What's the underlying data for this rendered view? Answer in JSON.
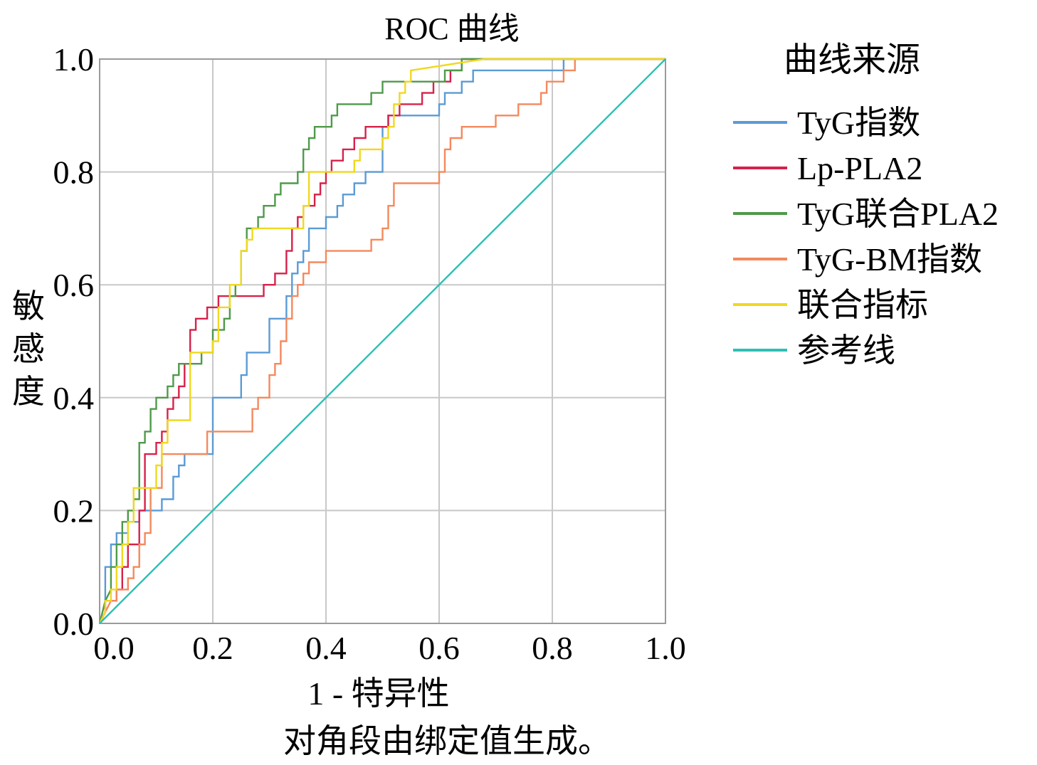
{
  "chart_data": {
    "type": "line",
    "title": "ROC 曲线",
    "xlabel": "1 - 特异性",
    "ylabel": "敏感度",
    "footnote": "对角段由绑定值生成。",
    "legend_title": "曲线来源",
    "legend_position": "right",
    "grid": true,
    "xlim": [
      0,
      1
    ],
    "ylim": [
      0,
      1
    ],
    "xticks": [
      "0.0",
      "0.2",
      "0.4",
      "0.6",
      "0.8",
      "1.0"
    ],
    "yticks": [
      "0.0",
      "0.2",
      "0.4",
      "0.6",
      "0.8",
      "1.0"
    ],
    "series": [
      {
        "name": "TyG指数",
        "color": "#5b9bd5",
        "x": [
          0,
          0.01,
          0.01,
          0.02,
          0.02,
          0.03,
          0.03,
          0.05,
          0.05,
          0.07,
          0.07,
          0.08,
          0.08,
          0.11,
          0.11,
          0.13,
          0.13,
          0.14,
          0.14,
          0.15,
          0.15,
          0.16,
          0.16,
          0.18,
          0.18,
          0.2,
          0.2,
          0.21,
          0.21,
          0.22,
          0.22,
          0.25,
          0.25,
          0.26,
          0.26,
          0.27,
          0.27,
          0.28,
          0.28,
          0.3,
          0.3,
          0.31,
          0.31,
          0.33,
          0.33,
          0.34,
          0.34,
          0.35,
          0.35,
          0.36,
          0.36,
          0.37,
          0.37,
          0.38,
          0.38,
          0.4,
          0.4,
          0.42,
          0.42,
          0.43,
          0.43,
          0.45,
          0.45,
          0.47,
          0.47,
          0.5,
          0.5,
          0.51,
          0.51,
          0.52,
          0.52,
          0.53,
          0.53,
          0.55,
          0.55,
          0.6,
          0.6,
          0.61,
          0.61,
          0.62,
          0.62,
          0.64,
          0.64,
          0.66,
          0.66,
          0.68,
          0.68,
          0.7,
          0.7,
          0.82,
          0.82,
          0.84,
          1.0
        ],
        "y": [
          0,
          0.02,
          0.1,
          0.1,
          0.14,
          0.14,
          0.16,
          0.16,
          0.18,
          0.18,
          0.2,
          0.2,
          0.2,
          0.2,
          0.22,
          0.22,
          0.26,
          0.26,
          0.28,
          0.28,
          0.3,
          0.3,
          0.3,
          0.3,
          0.3,
          0.3,
          0.4,
          0.4,
          0.4,
          0.4,
          0.4,
          0.4,
          0.44,
          0.44,
          0.48,
          0.48,
          0.48,
          0.48,
          0.48,
          0.48,
          0.54,
          0.54,
          0.54,
          0.54,
          0.58,
          0.58,
          0.62,
          0.62,
          0.64,
          0.64,
          0.66,
          0.66,
          0.7,
          0.7,
          0.7,
          0.7,
          0.72,
          0.72,
          0.74,
          0.74,
          0.76,
          0.76,
          0.78,
          0.78,
          0.8,
          0.8,
          0.88,
          0.88,
          0.9,
          0.9,
          0.9,
          0.9,
          0.9,
          0.9,
          0.9,
          0.9,
          0.92,
          0.92,
          0.94,
          0.94,
          0.94,
          0.94,
          0.96,
          0.96,
          0.98,
          0.98,
          0.98,
          0.98,
          0.98,
          0.98,
          1.0,
          1.0,
          1.0
        ]
      },
      {
        "name": "Lp-PLA2",
        "color": "#d6224a",
        "x": [
          0,
          0.01,
          0.01,
          0.03,
          0.03,
          0.04,
          0.04,
          0.05,
          0.05,
          0.07,
          0.07,
          0.08,
          0.08,
          0.1,
          0.1,
          0.11,
          0.11,
          0.12,
          0.12,
          0.13,
          0.13,
          0.14,
          0.14,
          0.15,
          0.15,
          0.16,
          0.16,
          0.17,
          0.17,
          0.19,
          0.19,
          0.21,
          0.21,
          0.22,
          0.22,
          0.23,
          0.23,
          0.29,
          0.29,
          0.31,
          0.31,
          0.33,
          0.33,
          0.34,
          0.34,
          0.35,
          0.35,
          0.36,
          0.36,
          0.37,
          0.37,
          0.38,
          0.38,
          0.39,
          0.39,
          0.4,
          0.4,
          0.41,
          0.41,
          0.42,
          0.42,
          0.43,
          0.43,
          0.45,
          0.45,
          0.47,
          0.47,
          0.49,
          0.49,
          0.51,
          0.51,
          0.52,
          0.52,
          0.53,
          0.53,
          0.55,
          0.55,
          0.57,
          0.57,
          0.59,
          0.59,
          0.62,
          0.62,
          0.64,
          0.64,
          0.65,
          0.65,
          1.0
        ],
        "y": [
          0,
          0.02,
          0.04,
          0.04,
          0.06,
          0.06,
          0.1,
          0.1,
          0.14,
          0.14,
          0.2,
          0.2,
          0.3,
          0.3,
          0.32,
          0.32,
          0.34,
          0.34,
          0.38,
          0.38,
          0.4,
          0.4,
          0.42,
          0.42,
          0.46,
          0.46,
          0.52,
          0.52,
          0.54,
          0.54,
          0.56,
          0.56,
          0.58,
          0.58,
          0.58,
          0.58,
          0.58,
          0.58,
          0.6,
          0.6,
          0.62,
          0.62,
          0.66,
          0.66,
          0.7,
          0.7,
          0.72,
          0.72,
          0.74,
          0.74,
          0.74,
          0.74,
          0.76,
          0.76,
          0.78,
          0.78,
          0.8,
          0.8,
          0.82,
          0.82,
          0.82,
          0.82,
          0.84,
          0.84,
          0.86,
          0.86,
          0.88,
          0.88,
          0.88,
          0.88,
          0.9,
          0.9,
          0.9,
          0.9,
          0.92,
          0.92,
          0.92,
          0.92,
          0.94,
          0.94,
          0.96,
          0.96,
          0.98,
          0.98,
          1.0,
          1.0,
          1.0,
          1.0
        ]
      },
      {
        "name": "TyG联合PLA2",
        "color": "#4e9a4a",
        "x": [
          0,
          0.01,
          0.01,
          0.02,
          0.02,
          0.03,
          0.03,
          0.04,
          0.04,
          0.05,
          0.05,
          0.06,
          0.06,
          0.07,
          0.07,
          0.08,
          0.08,
          0.09,
          0.09,
          0.1,
          0.1,
          0.12,
          0.12,
          0.13,
          0.13,
          0.14,
          0.14,
          0.16,
          0.16,
          0.18,
          0.18,
          0.2,
          0.2,
          0.22,
          0.22,
          0.23,
          0.23,
          0.24,
          0.24,
          0.25,
          0.25,
          0.26,
          0.26,
          0.28,
          0.28,
          0.29,
          0.29,
          0.31,
          0.31,
          0.32,
          0.32,
          0.35,
          0.35,
          0.36,
          0.36,
          0.37,
          0.37,
          0.38,
          0.38,
          0.39,
          0.39,
          0.41,
          0.41,
          0.42,
          0.42,
          0.44,
          0.44,
          0.48,
          0.48,
          0.49,
          0.49,
          0.5,
          0.5,
          0.52,
          0.52,
          0.61,
          0.61,
          0.62,
          0.62,
          0.64,
          0.64,
          0.66,
          1.0
        ],
        "y": [
          0,
          0.04,
          0.04,
          0.06,
          0.1,
          0.1,
          0.14,
          0.14,
          0.18,
          0.18,
          0.2,
          0.2,
          0.22,
          0.22,
          0.32,
          0.32,
          0.34,
          0.34,
          0.38,
          0.38,
          0.4,
          0.4,
          0.42,
          0.42,
          0.44,
          0.44,
          0.46,
          0.46,
          0.46,
          0.46,
          0.48,
          0.48,
          0.52,
          0.52,
          0.54,
          0.54,
          0.58,
          0.58,
          0.6,
          0.6,
          0.66,
          0.66,
          0.7,
          0.7,
          0.72,
          0.72,
          0.74,
          0.74,
          0.76,
          0.76,
          0.78,
          0.78,
          0.8,
          0.8,
          0.84,
          0.84,
          0.86,
          0.86,
          0.88,
          0.88,
          0.88,
          0.88,
          0.9,
          0.9,
          0.92,
          0.92,
          0.92,
          0.92,
          0.94,
          0.94,
          0.94,
          0.94,
          0.96,
          0.96,
          0.96,
          0.96,
          0.98,
          0.98,
          0.98,
          0.98,
          1.0,
          1.0,
          1.0
        ]
      },
      {
        "name": "TyG-BM指数",
        "color": "#f4895d",
        "x": [
          0,
          0.01,
          0.01,
          0.02,
          0.02,
          0.03,
          0.03,
          0.05,
          0.05,
          0.06,
          0.06,
          0.07,
          0.07,
          0.08,
          0.08,
          0.09,
          0.09,
          0.11,
          0.11,
          0.13,
          0.13,
          0.19,
          0.19,
          0.23,
          0.23,
          0.27,
          0.27,
          0.28,
          0.28,
          0.3,
          0.3,
          0.31,
          0.31,
          0.32,
          0.32,
          0.33,
          0.33,
          0.34,
          0.34,
          0.35,
          0.35,
          0.36,
          0.36,
          0.37,
          0.37,
          0.38,
          0.38,
          0.4,
          0.4,
          0.42,
          0.42,
          0.48,
          0.48,
          0.5,
          0.5,
          0.51,
          0.51,
          0.52,
          0.52,
          0.53,
          0.53,
          0.6,
          0.6,
          0.61,
          0.61,
          0.62,
          0.62,
          0.64,
          0.64,
          0.67,
          0.67,
          0.7,
          0.7,
          0.74,
          0.74,
          0.78,
          0.78,
          0.79,
          0.79,
          0.8,
          0.8,
          0.82,
          0.82,
          0.84,
          0.84,
          1.0
        ],
        "y": [
          0,
          0.02,
          0.02,
          0.04,
          0.04,
          0.04,
          0.06,
          0.06,
          0.08,
          0.08,
          0.1,
          0.1,
          0.14,
          0.14,
          0.16,
          0.16,
          0.24,
          0.24,
          0.3,
          0.3,
          0.3,
          0.3,
          0.34,
          0.34,
          0.34,
          0.34,
          0.38,
          0.38,
          0.4,
          0.4,
          0.44,
          0.44,
          0.46,
          0.46,
          0.5,
          0.5,
          0.54,
          0.54,
          0.58,
          0.58,
          0.6,
          0.6,
          0.62,
          0.62,
          0.64,
          0.64,
          0.64,
          0.64,
          0.66,
          0.66,
          0.66,
          0.66,
          0.68,
          0.68,
          0.7,
          0.7,
          0.74,
          0.74,
          0.78,
          0.78,
          0.78,
          0.78,
          0.8,
          0.8,
          0.84,
          0.84,
          0.86,
          0.86,
          0.88,
          0.88,
          0.88,
          0.88,
          0.9,
          0.9,
          0.92,
          0.92,
          0.94,
          0.94,
          0.96,
          0.96,
          0.96,
          0.96,
          0.98,
          0.98,
          1.0,
          1.0
        ]
      },
      {
        "name": "联合指标",
        "color": "#f0d820",
        "x": [
          0,
          0.01,
          0.01,
          0.02,
          0.02,
          0.03,
          0.03,
          0.04,
          0.04,
          0.05,
          0.05,
          0.06,
          0.06,
          0.09,
          0.09,
          0.1,
          0.1,
          0.11,
          0.11,
          0.12,
          0.12,
          0.16,
          0.16,
          0.17,
          0.17,
          0.2,
          0.2,
          0.21,
          0.21,
          0.23,
          0.23,
          0.24,
          0.24,
          0.25,
          0.25,
          0.26,
          0.26,
          0.27,
          0.27,
          0.31,
          0.31,
          0.36,
          0.36,
          0.37,
          0.37,
          0.38,
          0.38,
          0.39,
          0.39,
          0.43,
          0.43,
          0.45,
          0.45,
          0.46,
          0.46,
          0.5,
          0.5,
          0.51,
          0.51,
          0.52,
          0.52,
          0.53,
          0.53,
          0.54,
          0.54,
          0.55,
          0.55,
          0.68,
          1.0
        ],
        "y": [
          0,
          0.02,
          0.04,
          0.04,
          0.06,
          0.06,
          0.1,
          0.1,
          0.14,
          0.14,
          0.18,
          0.18,
          0.24,
          0.24,
          0.24,
          0.24,
          0.28,
          0.28,
          0.32,
          0.32,
          0.36,
          0.36,
          0.48,
          0.48,
          0.48,
          0.48,
          0.5,
          0.5,
          0.56,
          0.56,
          0.6,
          0.6,
          0.6,
          0.6,
          0.66,
          0.66,
          0.68,
          0.68,
          0.7,
          0.7,
          0.7,
          0.7,
          0.74,
          0.74,
          0.8,
          0.8,
          0.8,
          0.8,
          0.8,
          0.8,
          0.8,
          0.8,
          0.82,
          0.82,
          0.84,
          0.84,
          0.86,
          0.86,
          0.88,
          0.88,
          0.92,
          0.92,
          0.94,
          0.94,
          0.96,
          0.96,
          0.98,
          1.0,
          1.0
        ]
      },
      {
        "name": "参考线",
        "color": "#2ebfb5",
        "x": [
          0,
          1.0
        ],
        "y": [
          0,
          1.0
        ]
      }
    ]
  }
}
